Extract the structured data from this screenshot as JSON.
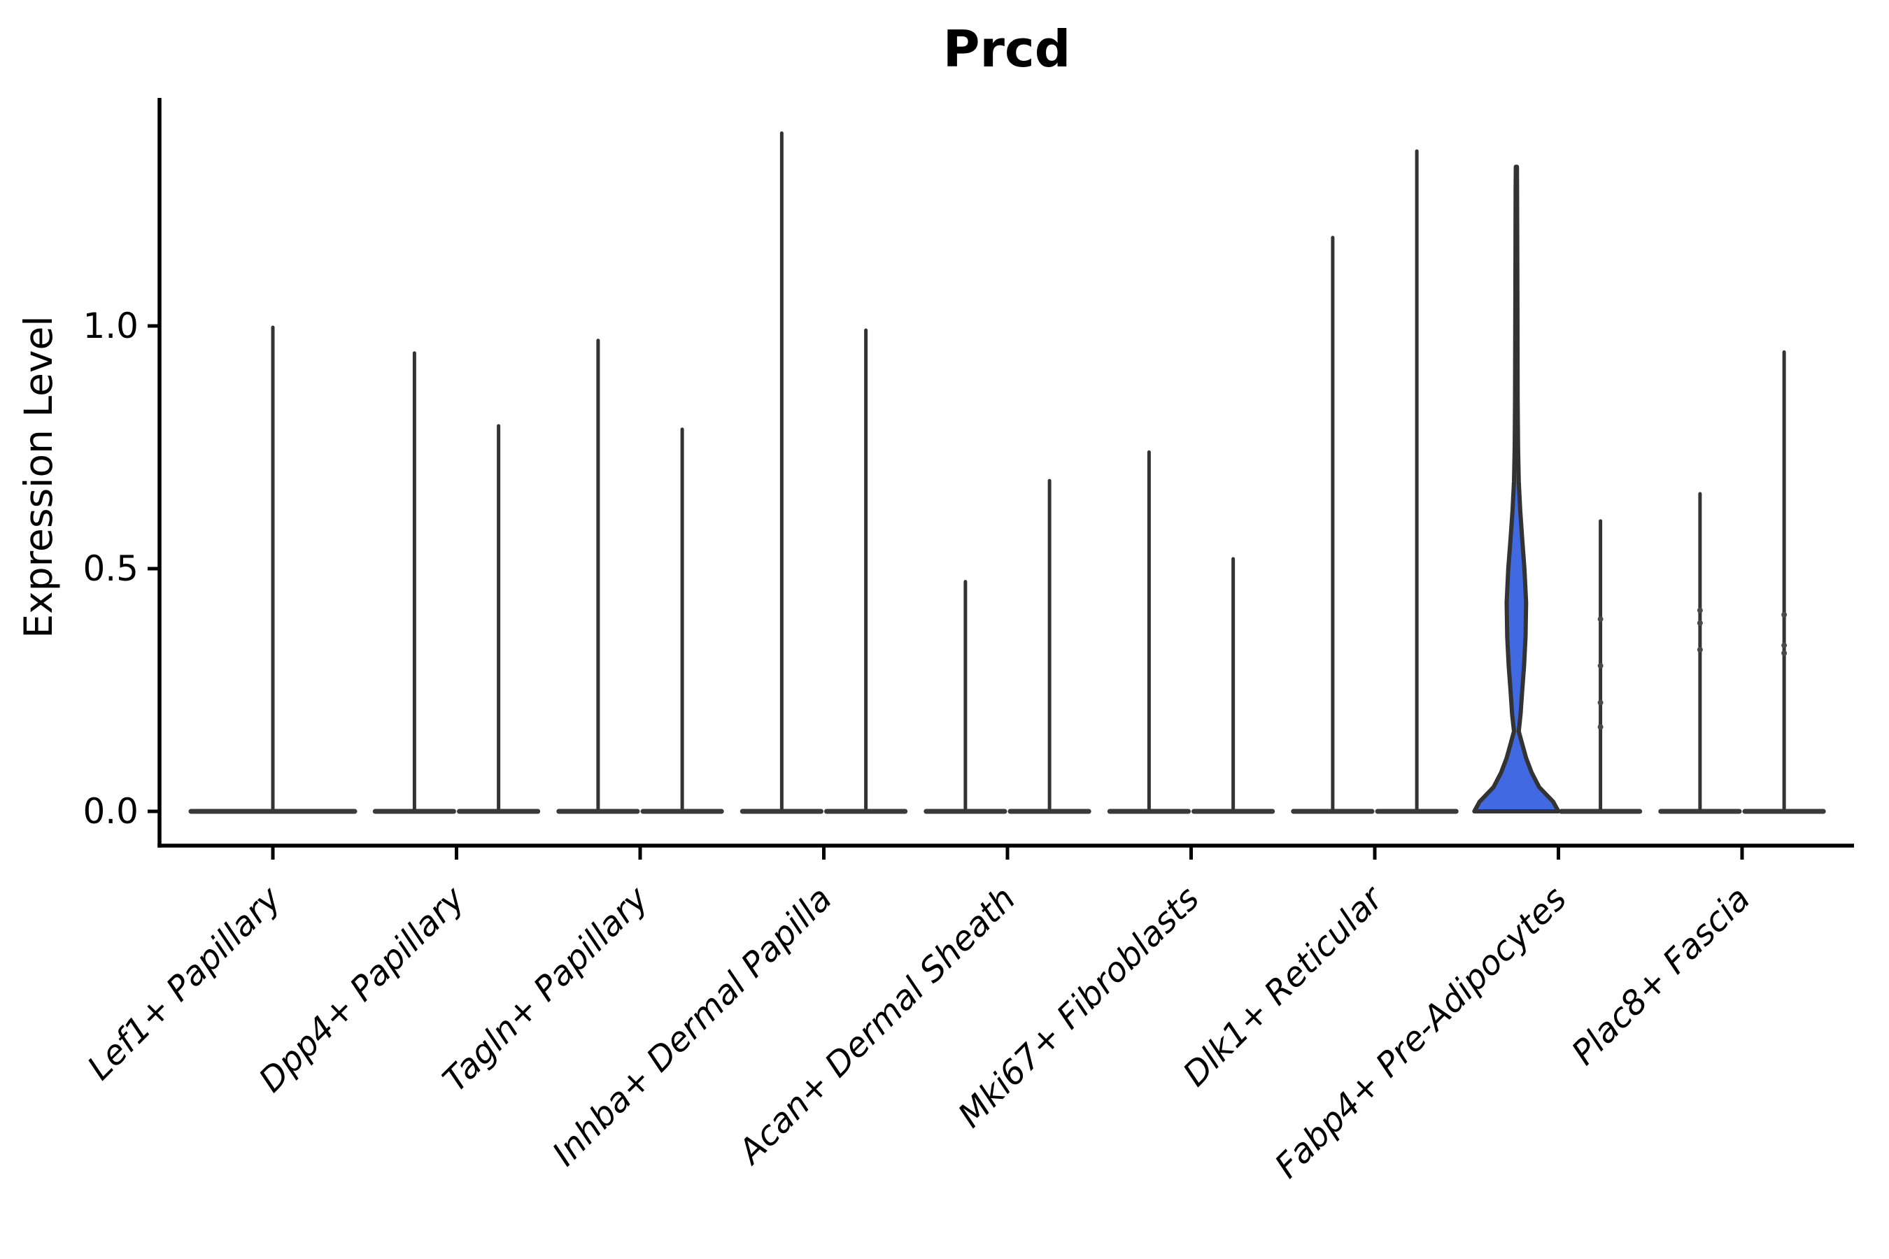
{
  "chart_data": {
    "type": "violin",
    "title": "Prcd",
    "ylabel": "Expression Level",
    "xlabel": "",
    "yticks": [
      {
        "label": "0.0",
        "value": 0.0
      },
      {
        "label": "0.5",
        "value": 0.5
      },
      {
        "label": "1.0",
        "value": 1.0
      }
    ],
    "ylim": [
      -0.07,
      1.466
    ],
    "grid": false,
    "legend": "none",
    "categories": [
      "Lef1+ Papillary",
      "Dpp4+ Papillary",
      "Tagln+ Papillary",
      "Inhba+ Dermal Papilla",
      "Acan+ Dermal Sheath",
      "Mki67+ Fibroblasts",
      "Dlk1+ Reticular",
      "Fabp4+ Pre-Adipocytes",
      "Plac8+ Fascia"
    ],
    "violins": [
      {
        "category": 0,
        "pos": 1.0,
        "max": 1.0,
        "base_halfwidth": 0.461
      },
      {
        "category": 1,
        "pos": 1.771,
        "max": 0.947,
        "base_halfwidth": 0.229
      },
      {
        "category": 1,
        "pos": 2.229,
        "max": 0.797,
        "base_halfwidth": 0.229
      },
      {
        "category": 2,
        "pos": 2.771,
        "max": 0.973,
        "base_halfwidth": 0.229
      },
      {
        "category": 2,
        "pos": 3.229,
        "max": 0.79,
        "base_halfwidth": 0.229
      },
      {
        "category": 3,
        "pos": 3.771,
        "max": 1.4,
        "base_halfwidth": 0.229
      },
      {
        "category": 3,
        "pos": 4.229,
        "max": 0.994,
        "base_halfwidth": 0.229
      },
      {
        "category": 4,
        "pos": 4.771,
        "max": 0.476,
        "base_halfwidth": 0.229
      },
      {
        "category": 4,
        "pos": 5.229,
        "max": 0.684,
        "base_halfwidth": 0.229
      },
      {
        "category": 5,
        "pos": 5.771,
        "max": 0.743,
        "base_halfwidth": 0.229
      },
      {
        "category": 5,
        "pos": 6.229,
        "max": 0.523,
        "base_halfwidth": 0.229
      },
      {
        "category": 6,
        "pos": 6.771,
        "max": 1.185,
        "base_halfwidth": 0.229
      },
      {
        "category": 6,
        "pos": 7.229,
        "max": 1.363,
        "base_halfwidth": 0.229
      },
      {
        "category": 7,
        "pos": 7.771,
        "max": 1.328,
        "base_halfwidth": 0.229,
        "highlight": true,
        "profile": [
          [
            0.0,
            0.229
          ],
          [
            0.02,
            0.2
          ],
          [
            0.05,
            0.124
          ],
          [
            0.08,
            0.083
          ],
          [
            0.11,
            0.053
          ],
          [
            0.14,
            0.031
          ],
          [
            0.165,
            0.013
          ],
          [
            0.2,
            0.023
          ],
          [
            0.25,
            0.032
          ],
          [
            0.3,
            0.042
          ],
          [
            0.36,
            0.05
          ],
          [
            0.43,
            0.053
          ],
          [
            0.5,
            0.044
          ],
          [
            0.56,
            0.032
          ],
          [
            0.62,
            0.021
          ],
          [
            0.68,
            0.013
          ],
          [
            0.75,
            0.009
          ],
          [
            0.85,
            0.007
          ],
          [
            1.0,
            0.006
          ],
          [
            1.15,
            0.005
          ],
          [
            1.28,
            0.004
          ],
          [
            1.328,
            0.003
          ]
        ]
      },
      {
        "category": 7,
        "pos": 8.229,
        "max": 0.601,
        "base_halfwidth": 0.229,
        "dots": [
          0.396,
          0.3,
          0.224,
          0.174
        ]
      },
      {
        "category": 8,
        "pos": 8.771,
        "max": 0.657,
        "base_halfwidth": 0.229,
        "dots": [
          0.414,
          0.388,
          0.333
        ]
      },
      {
        "category": 8,
        "pos": 9.229,
        "max": 0.949,
        "base_halfwidth": 0.229,
        "dots": [
          0.405,
          0.342,
          0.326
        ]
      }
    ],
    "colors": {
      "highlight_fill": "#4169E1",
      "violin_edge": "#333333",
      "baseline_bar": "#3a3a3a",
      "axis": "#000000",
      "background": "#ffffff"
    }
  }
}
